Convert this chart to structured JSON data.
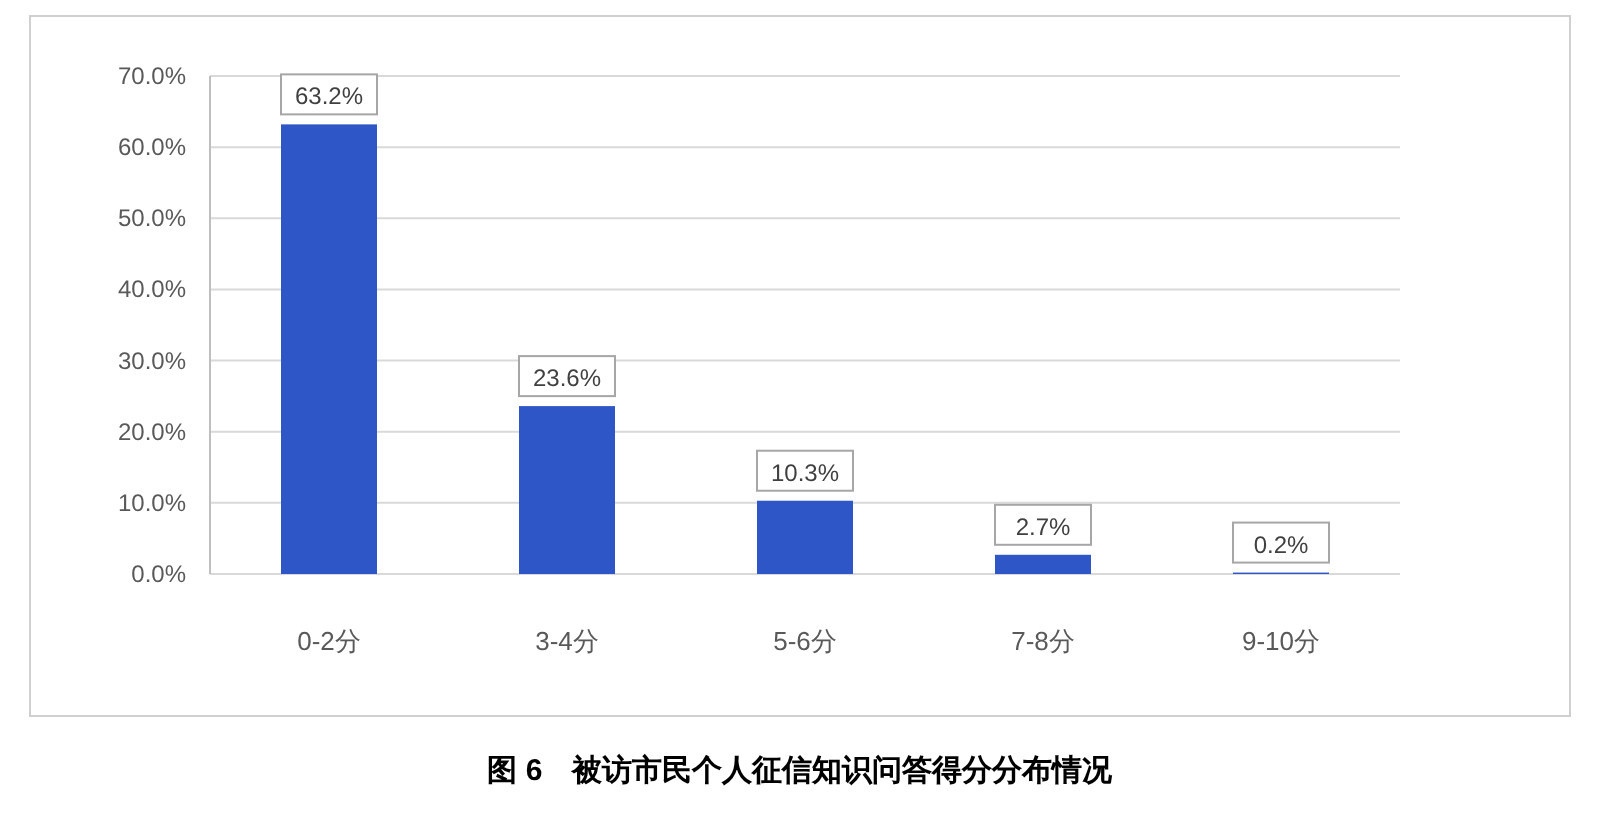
{
  "chart_data": {
    "type": "bar",
    "title": "图 6　被访市民个人征信知识问答得分分布情况",
    "categories": [
      "0-2分",
      "3-4分",
      "5-6分",
      "7-8分",
      "9-10分"
    ],
    "values": [
      63.2,
      23.6,
      10.3,
      2.7,
      0.2
    ],
    "value_labels": [
      "63.2%",
      "23.6%",
      "10.3%",
      "2.7%",
      "0.2%"
    ],
    "color": "#2f56c6",
    "ylim": [
      0,
      70
    ],
    "yticks": [
      {
        "value": 0,
        "label": "0.0%"
      },
      {
        "value": 10,
        "label": "10.0%"
      },
      {
        "value": 20,
        "label": "20.0%"
      },
      {
        "value": 30,
        "label": "30.0%"
      },
      {
        "value": 40,
        "label": "40.0%"
      },
      {
        "value": 50,
        "label": "50.0%"
      },
      {
        "value": 60,
        "label": "60.0%"
      },
      {
        "value": 70,
        "label": "70.0%"
      }
    ],
    "grid": "y"
  }
}
